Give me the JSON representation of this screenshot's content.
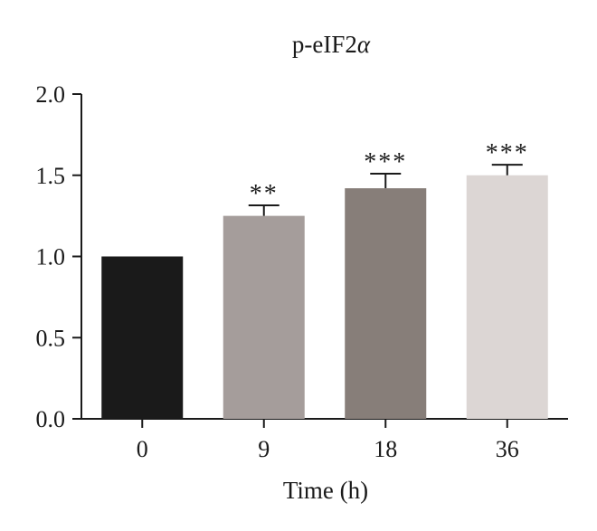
{
  "chart_data": {
    "type": "bar",
    "title": "p-eIF2α",
    "title_base": "p-eIF2",
    "title_greek": "α",
    "xlabel": "Time (h)",
    "ylabel": "",
    "categories": [
      "0",
      "9",
      "18",
      "36"
    ],
    "values": [
      1.0,
      1.25,
      1.42,
      1.5
    ],
    "errors": [
      0.0,
      0.065,
      0.09,
      0.065
    ],
    "significance": [
      "",
      "**",
      "***",
      "***"
    ],
    "bar_colors": [
      "#1a1a1a",
      "#a59d9b",
      "#877e79",
      "#dcd6d4"
    ],
    "ylim": [
      0,
      2.0
    ],
    "yticks": [
      "0.0",
      "0.5",
      "1.0",
      "1.5",
      "2.0"
    ],
    "grid": false,
    "legend": "none"
  }
}
